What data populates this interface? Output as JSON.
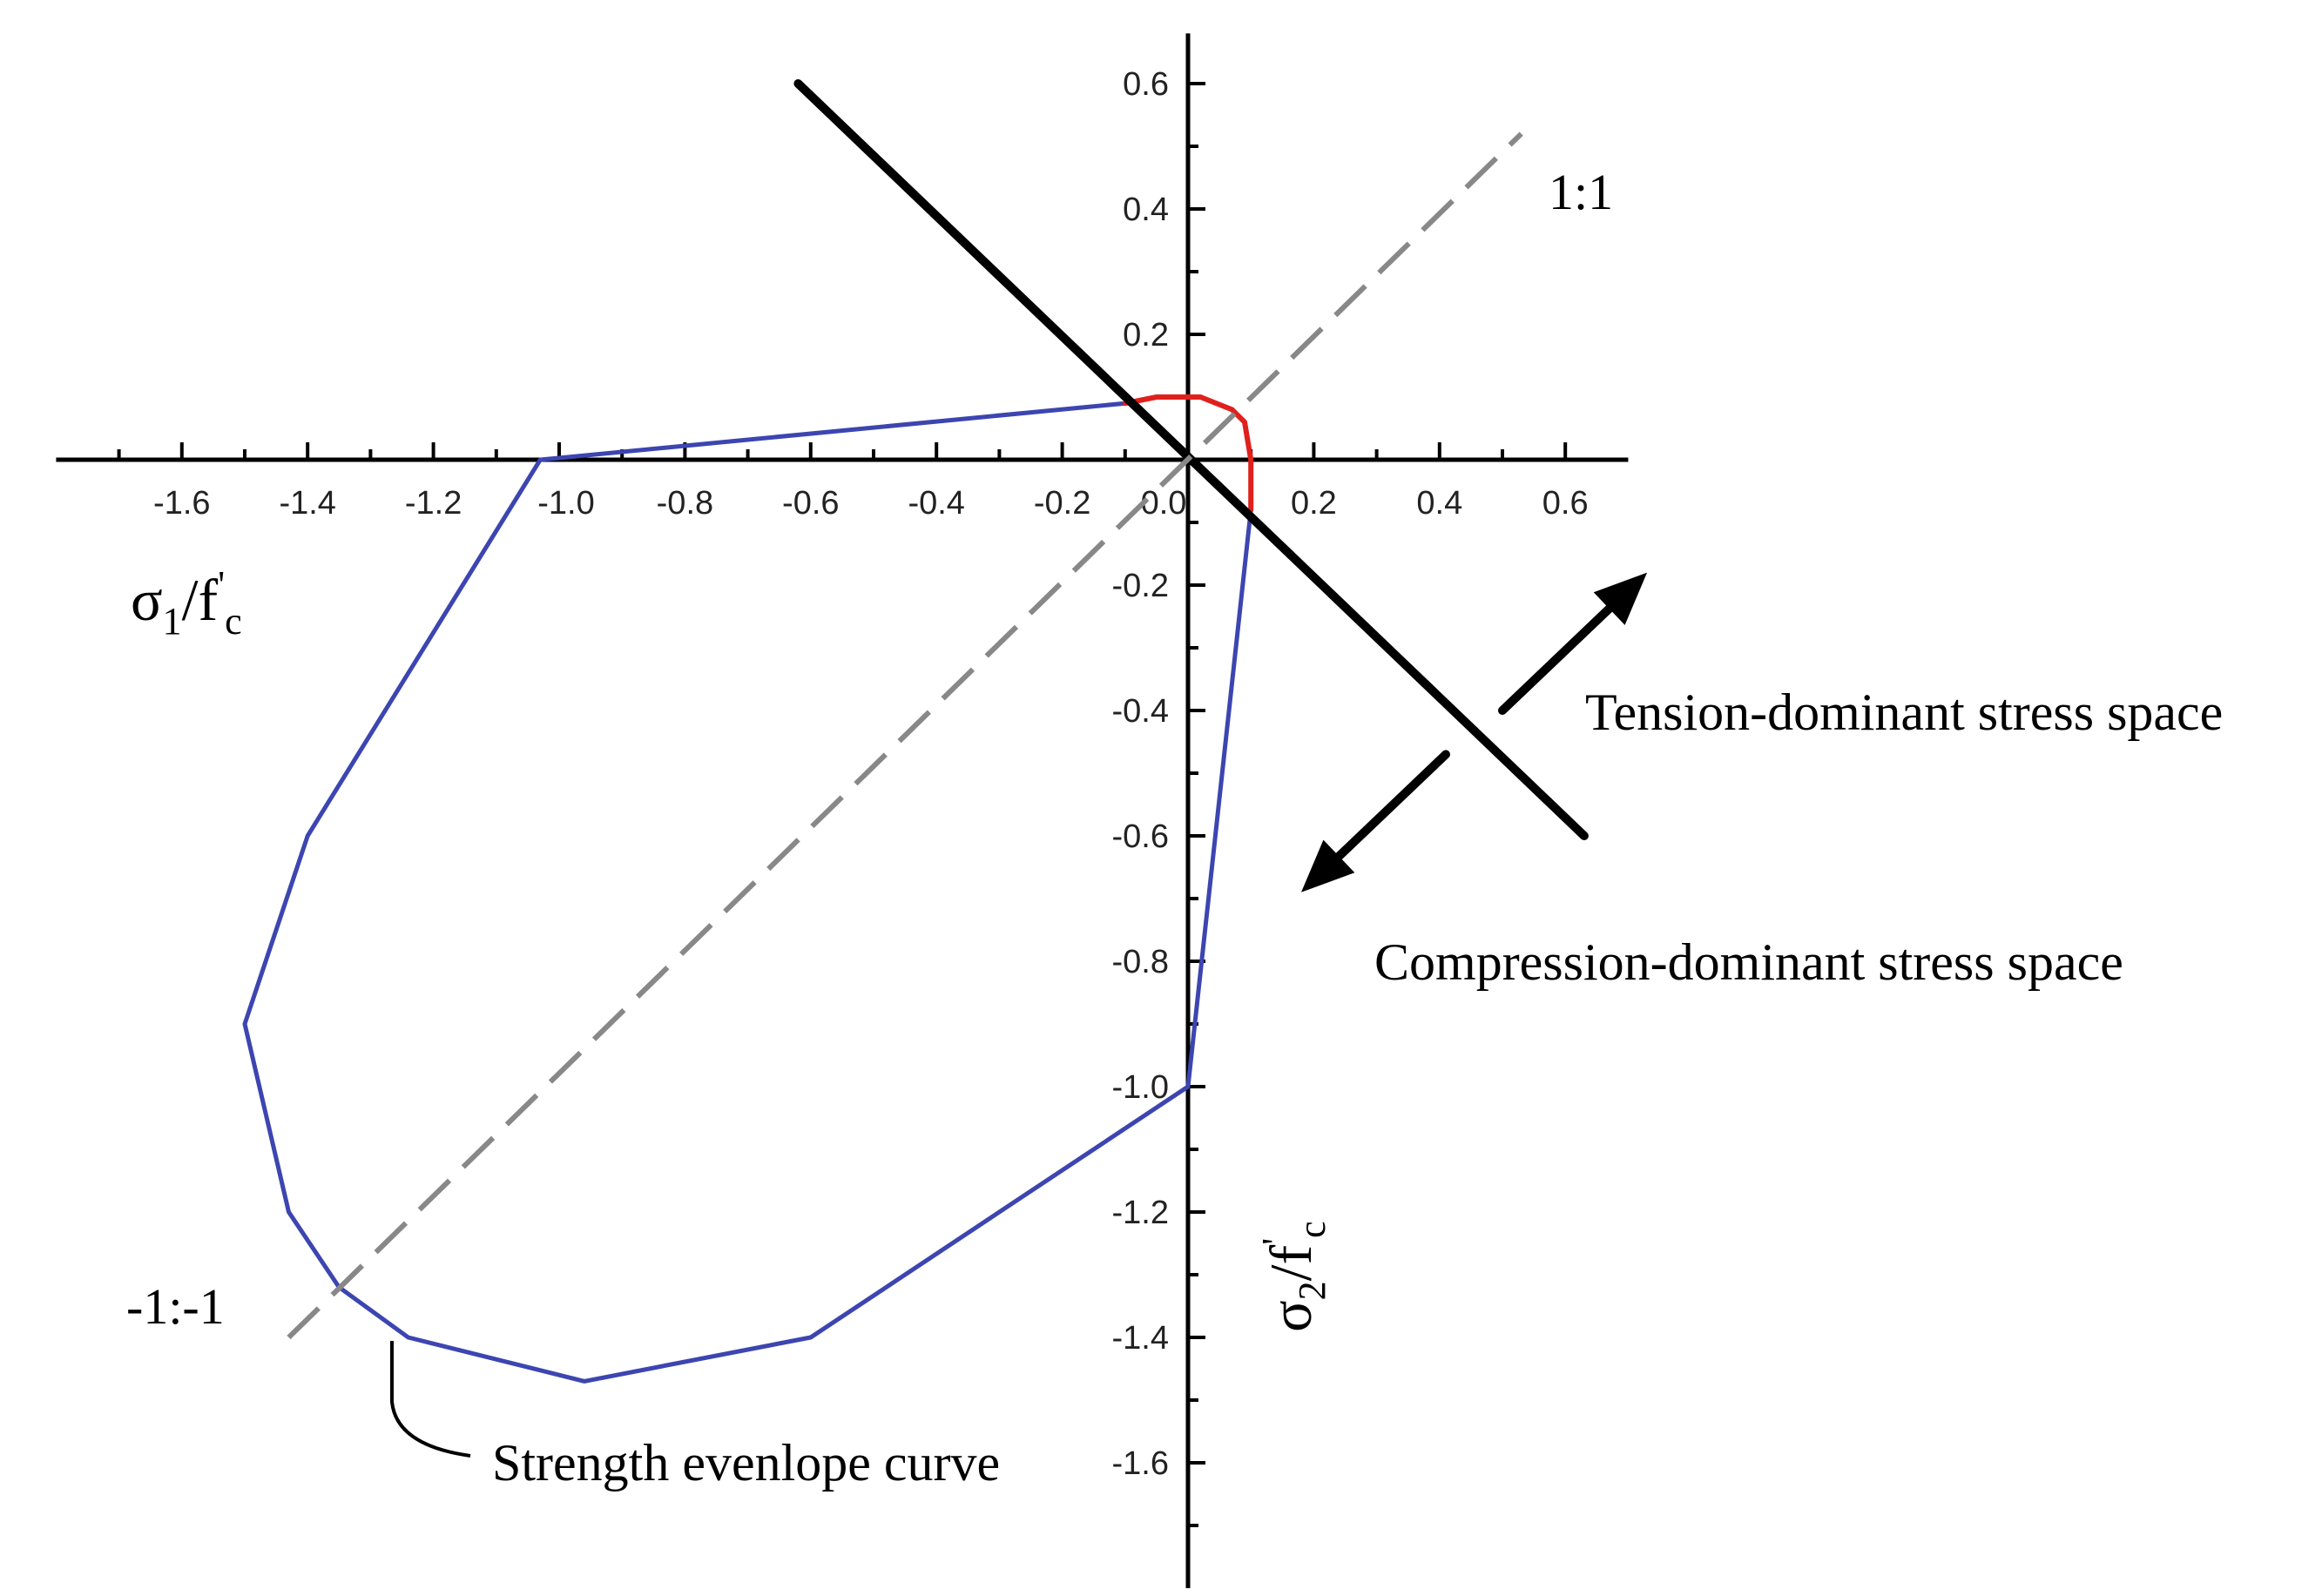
{
  "chart_data": {
    "type": "line",
    "axes": {
      "x": {
        "ticks": [
          -1.6,
          -1.4,
          -1.2,
          -1.0,
          -0.8,
          -0.6,
          -0.4,
          -0.2,
          0.0,
          0.2,
          0.4,
          0.6
        ],
        "tick_labels": [
          "-1.6",
          "-1.4",
          "-1.2",
          "-1.0",
          "-0.8",
          "-0.6",
          "-0.4",
          "-0.2",
          "0.0",
          "0.2",
          "0.4",
          "0.6"
        ],
        "range": [
          -1.8,
          0.7
        ],
        "label_main": "σ",
        "label_sub": "1",
        "label_rest": "/f",
        "label_sup": "'",
        "label_csub": "c"
      },
      "y": {
        "ticks": [
          0.6,
          0.4,
          0.2,
          -0.2,
          -0.4,
          -0.6,
          -0.8,
          -1.0,
          -1.2,
          -1.4,
          -1.6
        ],
        "tick_labels": [
          "0.6",
          "0.4",
          "0.2",
          "-0.2",
          "-0.4",
          "-0.6",
          "-0.8",
          "-1.0",
          "-1.2",
          "-1.4",
          "-1.6"
        ],
        "range": [
          -1.8,
          0.68
        ],
        "label_main": "σ",
        "label_sub": "2",
        "label_rest": "/f",
        "label_sup": "'",
        "label_csub": "c"
      }
    },
    "series": [
      {
        "color": "#3c45b0",
        "points": [
          [
            -1.03,
            0.0
          ],
          [
            -0.1,
            0.09
          ],
          [
            -1.03,
            0.0
          ],
          [
            -1.4,
            -0.6
          ],
          [
            -1.5,
            -0.9
          ],
          [
            -1.43,
            -1.2
          ],
          [
            -1.35,
            -1.32
          ],
          [
            -1.24,
            -1.4
          ],
          [
            -0.96,
            -1.47
          ],
          [
            -0.6,
            -1.4
          ],
          [
            0.0,
            -1.0
          ],
          [
            0.1,
            -0.08
          ]
        ]
      },
      {
        "color": "#e0201c",
        "points": [
          [
            -0.1,
            0.09
          ],
          [
            -0.05,
            0.1
          ],
          [
            0.02,
            0.1
          ],
          [
            0.07,
            0.08
          ],
          [
            0.09,
            0.06
          ],
          [
            0.1,
            0.0
          ],
          [
            0.1,
            -0.08
          ]
        ]
      },
      {
        "color": "#000000",
        "points": [
          [
            -0.62,
            0.6
          ],
          [
            0.63,
            -0.6
          ]
        ]
      },
      {
        "color": "#888888",
        "dashed": true,
        "points": [
          [
            -1.43,
            -1.4
          ],
          [
            0.53,
            0.52
          ]
        ]
      }
    ],
    "annotations": {
      "ratio_pos": "1:1",
      "ratio_neg": "-1:-1",
      "tension": "Tension-dominant stress space",
      "compression": "Compression-dominant stress space",
      "envelope": "Strength evenlope curve"
    },
    "arrows": {
      "tension": [
        [
          0.5,
          -0.4
        ],
        [
          0.73,
          -0.18
        ]
      ],
      "compression": [
        [
          0.41,
          -0.47
        ],
        [
          0.18,
          -0.69
        ]
      ]
    },
    "colors": {
      "axis": "#000000",
      "envelope": "#3c45b0",
      "tension_cap": "#e0201c",
      "diagonal": "#888888"
    },
    "grid": false
  }
}
